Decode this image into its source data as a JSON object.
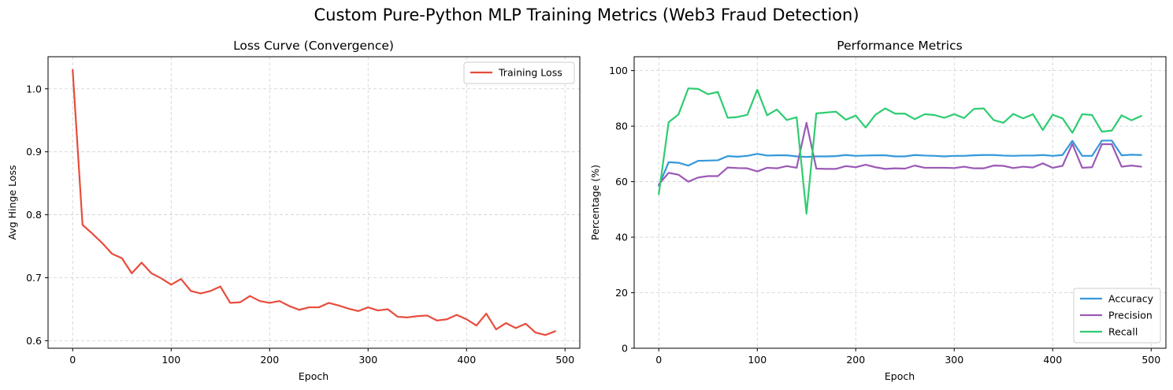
{
  "suptitle": "Custom Pure-Python MLP Training Metrics (Web3 Fraud Detection)",
  "chart_data": [
    {
      "type": "line",
      "title": "Loss Curve (Convergence)",
      "xlabel": "Epoch",
      "ylabel": "Avg Hinge Loss",
      "xlim": [
        -25,
        515
      ],
      "ylim": [
        0.588,
        1.051
      ],
      "xticks": [
        0,
        100,
        200,
        300,
        400,
        500
      ],
      "yticks": [
        0.6,
        0.7,
        0.8,
        0.9,
        1.0
      ],
      "ytick_labels": [
        "0.6",
        "0.7",
        "0.8",
        "0.9",
        "1.0"
      ],
      "grid": true,
      "legend": "upper right",
      "x": [
        0,
        10,
        20,
        30,
        40,
        50,
        60,
        70,
        80,
        90,
        100,
        110,
        120,
        130,
        140,
        150,
        160,
        170,
        180,
        190,
        200,
        210,
        220,
        230,
        240,
        250,
        260,
        270,
        280,
        290,
        300,
        310,
        320,
        330,
        340,
        350,
        360,
        370,
        380,
        390,
        400,
        410,
        420,
        430,
        440,
        450,
        460,
        470,
        480,
        490
      ],
      "series": [
        {
          "name": "Training Loss",
          "color": "#e74c3c",
          "values": [
            1.03,
            0.784,
            0.77,
            0.755,
            0.738,
            0.731,
            0.707,
            0.724,
            0.707,
            0.699,
            0.689,
            0.698,
            0.679,
            0.675,
            0.679,
            0.686,
            0.66,
            0.661,
            0.671,
            0.663,
            0.66,
            0.663,
            0.655,
            0.649,
            0.653,
            0.653,
            0.66,
            0.656,
            0.651,
            0.647,
            0.653,
            0.648,
            0.65,
            0.638,
            0.637,
            0.639,
            0.64,
            0.632,
            0.634,
            0.641,
            0.634,
            0.624,
            0.643,
            0.618,
            0.628,
            0.62,
            0.627,
            0.613,
            0.609,
            0.615
          ]
        }
      ]
    },
    {
      "type": "line",
      "title": "Performance Metrics",
      "xlabel": "Epoch",
      "ylabel": "Percentage (%)",
      "xlim": [
        -25,
        515
      ],
      "ylim": [
        0,
        105
      ],
      "xticks": [
        0,
        100,
        200,
        300,
        400,
        500
      ],
      "yticks": [
        0,
        20,
        40,
        60,
        80,
        100
      ],
      "ytick_labels": [
        "0",
        "20",
        "40",
        "60",
        "80",
        "100"
      ],
      "grid": true,
      "legend": "lower right",
      "x": [
        0,
        10,
        20,
        30,
        40,
        50,
        60,
        70,
        80,
        90,
        100,
        110,
        120,
        130,
        140,
        150,
        160,
        170,
        180,
        190,
        200,
        210,
        220,
        230,
        240,
        250,
        260,
        270,
        280,
        290,
        300,
        310,
        320,
        330,
        340,
        350,
        360,
        370,
        380,
        390,
        400,
        410,
        420,
        430,
        440,
        450,
        460,
        470,
        480,
        490
      ],
      "series": [
        {
          "name": "Accuracy",
          "color": "#3498db",
          "values": [
            58.5,
            67.0,
            66.8,
            65.8,
            67.5,
            67.6,
            67.7,
            69.2,
            69.0,
            69.3,
            70.0,
            69.4,
            69.5,
            69.5,
            69.1,
            68.9,
            69.1,
            69.1,
            69.2,
            69.6,
            69.3,
            69.4,
            69.5,
            69.5,
            69.1,
            69.1,
            69.6,
            69.4,
            69.3,
            69.1,
            69.3,
            69.3,
            69.5,
            69.6,
            69.6,
            69.4,
            69.3,
            69.4,
            69.4,
            69.6,
            69.3,
            69.6,
            74.7,
            69.3,
            69.3,
            74.8,
            74.8,
            69.5,
            69.7,
            69.6
          ]
        },
        {
          "name": "Precision",
          "color": "#9b59b6",
          "values": [
            59.0,
            63.2,
            62.5,
            60.0,
            61.5,
            62.0,
            62.0,
            65.1,
            64.9,
            64.8,
            63.7,
            65.0,
            64.8,
            65.6,
            65.0,
            81.2,
            64.7,
            64.6,
            64.6,
            65.6,
            65.2,
            66.1,
            65.2,
            64.6,
            64.8,
            64.7,
            65.8,
            65.0,
            65.0,
            65.0,
            64.9,
            65.4,
            64.8,
            64.8,
            65.8,
            65.7,
            64.9,
            65.4,
            65.1,
            66.6,
            65.0,
            65.7,
            73.6,
            65.0,
            65.2,
            73.5,
            73.5,
            65.4,
            65.8,
            65.4
          ]
        },
        {
          "name": "Recall",
          "color": "#2ecc71",
          "values": [
            55.5,
            81.4,
            84.2,
            93.6,
            93.4,
            91.5,
            92.3,
            83.0,
            83.3,
            84.1,
            93.1,
            83.9,
            86.0,
            82.2,
            83.2,
            48.5,
            84.6,
            84.9,
            85.2,
            82.3,
            83.8,
            79.5,
            84.1,
            86.4,
            84.5,
            84.5,
            82.5,
            84.3,
            84.0,
            83.0,
            84.3,
            82.9,
            86.2,
            86.4,
            82.2,
            81.2,
            84.4,
            82.8,
            84.3,
            78.6,
            84.1,
            82.8,
            77.6,
            84.3,
            84.0,
            78.0,
            78.4,
            83.9,
            82.1,
            83.7
          ]
        }
      ]
    }
  ]
}
